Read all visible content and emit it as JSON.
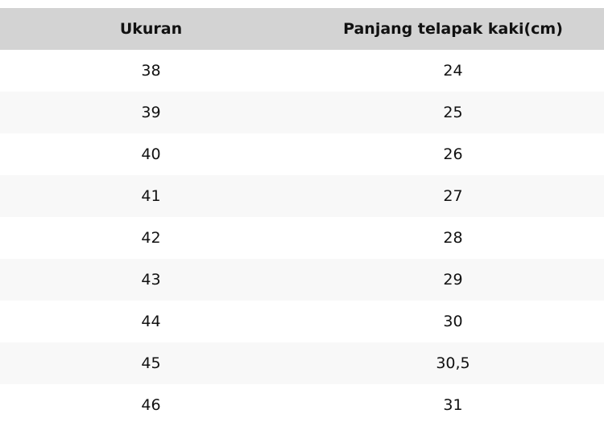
{
  "table": {
    "headers": [
      "Ukuran",
      "Panjang telapak kaki(cm)"
    ],
    "rows": [
      [
        "38",
        "24"
      ],
      [
        "39",
        "25"
      ],
      [
        "40",
        "26"
      ],
      [
        "41",
        "27"
      ],
      [
        "42",
        "28"
      ],
      [
        "43",
        "29"
      ],
      [
        "44",
        "30"
      ],
      [
        "45",
        "30,5"
      ],
      [
        "46",
        "31"
      ]
    ]
  }
}
